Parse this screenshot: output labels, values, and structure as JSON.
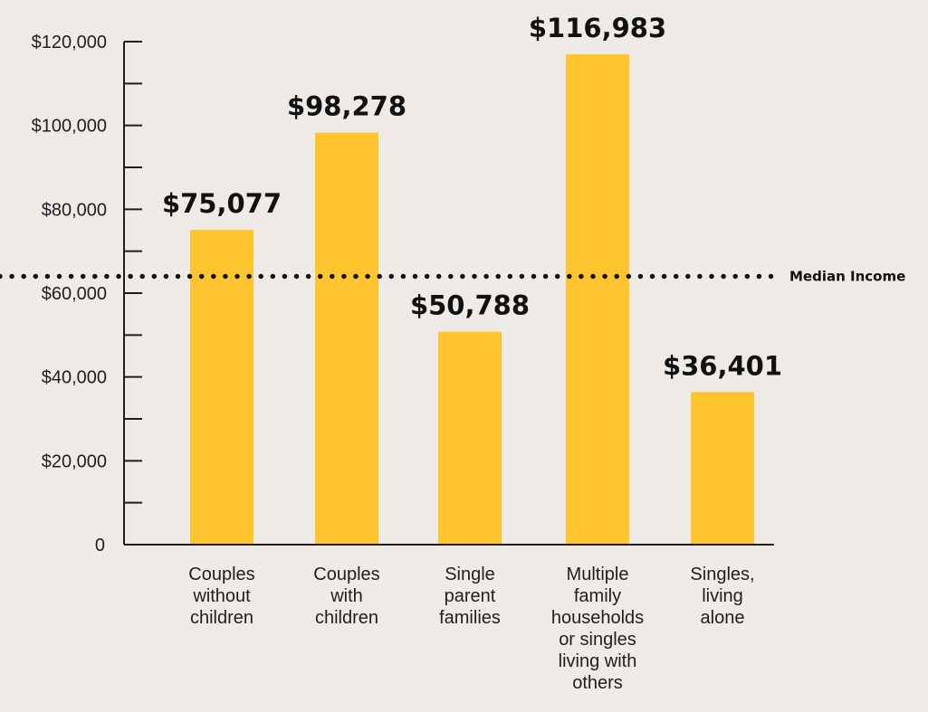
{
  "chart_data": {
    "type": "bar",
    "categories": [
      [
        "Couples",
        "without",
        "children"
      ],
      [
        "Couples",
        "with",
        "children"
      ],
      [
        "Single",
        "parent",
        "families"
      ],
      [
        "Multiple",
        "family",
        "households",
        "or singles",
        "living with",
        "others"
      ],
      [
        "Singles,",
        "living",
        "alone"
      ]
    ],
    "values": [
      75077,
      98278,
      50788,
      116983,
      36401
    ],
    "value_labels": [
      "$75,077",
      "$98,278",
      "$50,788",
      "$116,983",
      "$36,401"
    ],
    "ylim": [
      0,
      120000
    ],
    "y_ticks": [
      0,
      20000,
      40000,
      60000,
      80000,
      100000,
      120000
    ],
    "y_tick_labels": [
      "0",
      "$20,000",
      "$40,000",
      "$60,000",
      "$80,000",
      "$100,000",
      "$120,000"
    ],
    "y_minor_ticks": [
      10000,
      30000,
      50000,
      70000,
      90000,
      110000
    ],
    "reference_line": {
      "value": 64000,
      "label": "Median Income",
      "style": "dotted"
    },
    "bar_color": "#FFC42E",
    "axis_color": "#1E1E1E",
    "background": "#EEEBE7",
    "title": "",
    "xlabel": "",
    "ylabel": "",
    "grid": false
  }
}
